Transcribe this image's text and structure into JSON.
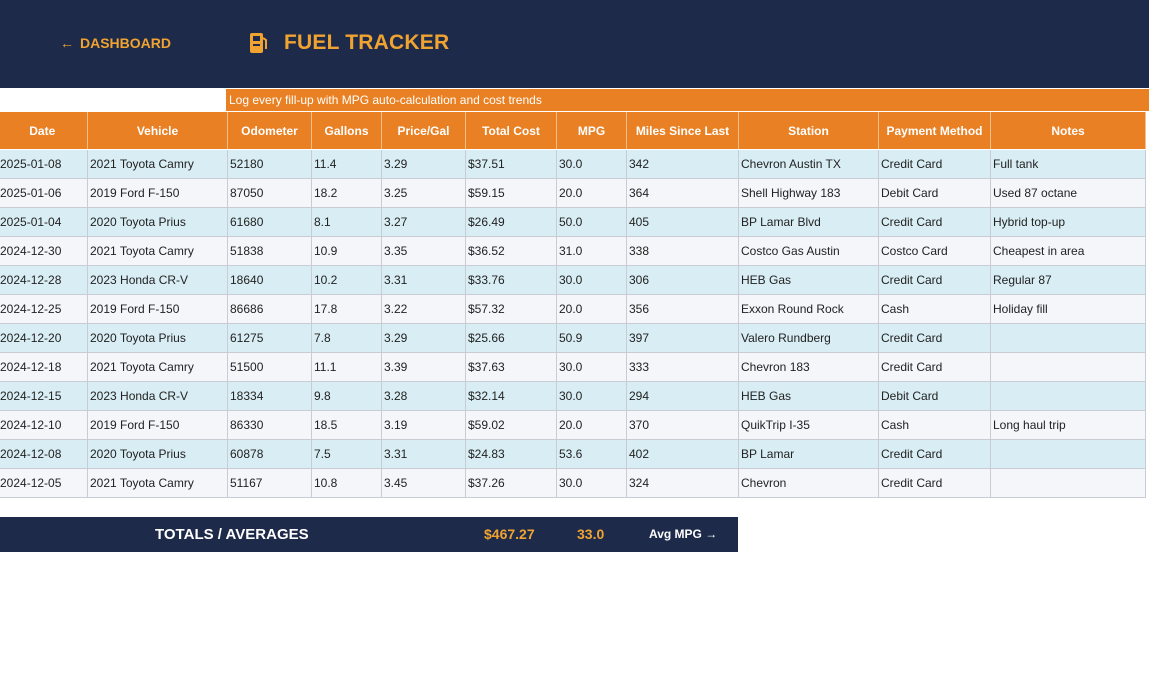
{
  "header": {
    "back_label": "DASHBOARD",
    "back_icon": "arrow-left-icon",
    "title": "FUEL TRACKER",
    "title_icon": "fuel-pump-icon",
    "subtitle": "Log every fill-up with MPG auto-calculation and cost trends"
  },
  "colors": {
    "navy": "#1e2a4a",
    "accent": "#f0a330",
    "orange": "#e98023",
    "row_blue": "#d9eef4",
    "row_gray": "#f5f6fa"
  },
  "table": {
    "columns": [
      "Date",
      "Vehicle",
      "Odometer",
      "Gallons",
      "Price/Gal",
      "Total Cost",
      "MPG",
      "Miles Since Last",
      "Station",
      "Payment Method",
      "Notes"
    ],
    "rows": [
      [
        "2025-01-08",
        "2021 Toyota Camry",
        "52180",
        "11.4",
        "3.29",
        "$37.51",
        "30.0",
        "342",
        "Chevron Austin TX",
        "Credit Card",
        "Full tank"
      ],
      [
        "2025-01-06",
        "2019 Ford F-150",
        "87050",
        "18.2",
        "3.25",
        "$59.15",
        "20.0",
        "364",
        "Shell Highway 183",
        "Debit Card",
        "Used 87 octane"
      ],
      [
        "2025-01-04",
        "2020 Toyota Prius",
        "61680",
        "8.1",
        "3.27",
        "$26.49",
        "50.0",
        "405",
        "BP Lamar Blvd",
        "Credit Card",
        "Hybrid top-up"
      ],
      [
        "2024-12-30",
        "2021 Toyota Camry",
        "51838",
        "10.9",
        "3.35",
        "$36.52",
        "31.0",
        "338",
        "Costco Gas Austin",
        "Costco Card",
        "Cheapest in area"
      ],
      [
        "2024-12-28",
        "2023 Honda CR-V",
        "18640",
        "10.2",
        "3.31",
        "$33.76",
        "30.0",
        "306",
        "HEB Gas",
        "Credit Card",
        "Regular 87"
      ],
      [
        "2024-12-25",
        "2019 Ford F-150",
        "86686",
        "17.8",
        "3.22",
        "$57.32",
        "20.0",
        "356",
        "Exxon Round Rock",
        "Cash",
        "Holiday fill"
      ],
      [
        "2024-12-20",
        "2020 Toyota Prius",
        "61275",
        "7.8",
        "3.29",
        "$25.66",
        "50.9",
        "397",
        "Valero Rundberg",
        "Credit Card",
        ""
      ],
      [
        "2024-12-18",
        "2021 Toyota Camry",
        "51500",
        "11.1",
        "3.39",
        "$37.63",
        "30.0",
        "333",
        "Chevron 183",
        "Credit Card",
        ""
      ],
      [
        "2024-12-15",
        "2023 Honda CR-V",
        "18334",
        "9.8",
        "3.28",
        "$32.14",
        "30.0",
        "294",
        "HEB Gas",
        "Debit Card",
        ""
      ],
      [
        "2024-12-10",
        "2019 Ford F-150",
        "86330",
        "18.5",
        "3.19",
        "$59.02",
        "20.0",
        "370",
        "QuikTrip I-35",
        "Cash",
        "Long haul trip"
      ],
      [
        "2024-12-08",
        "2020 Toyota Prius",
        "60878",
        "7.5",
        "3.31",
        "$24.83",
        "53.6",
        "402",
        "BP Lamar",
        "Credit Card",
        ""
      ],
      [
        "2024-12-05",
        "2021 Toyota Camry",
        "51167",
        "10.8",
        "3.45",
        "$37.26",
        "30.0",
        "324",
        "Chevron",
        "Credit Card",
        ""
      ]
    ]
  },
  "totals": {
    "label": "TOTALS / AVERAGES",
    "total_cost": "$467.27",
    "avg_mpg": "33.0",
    "avg_label": "Avg MPG →"
  }
}
